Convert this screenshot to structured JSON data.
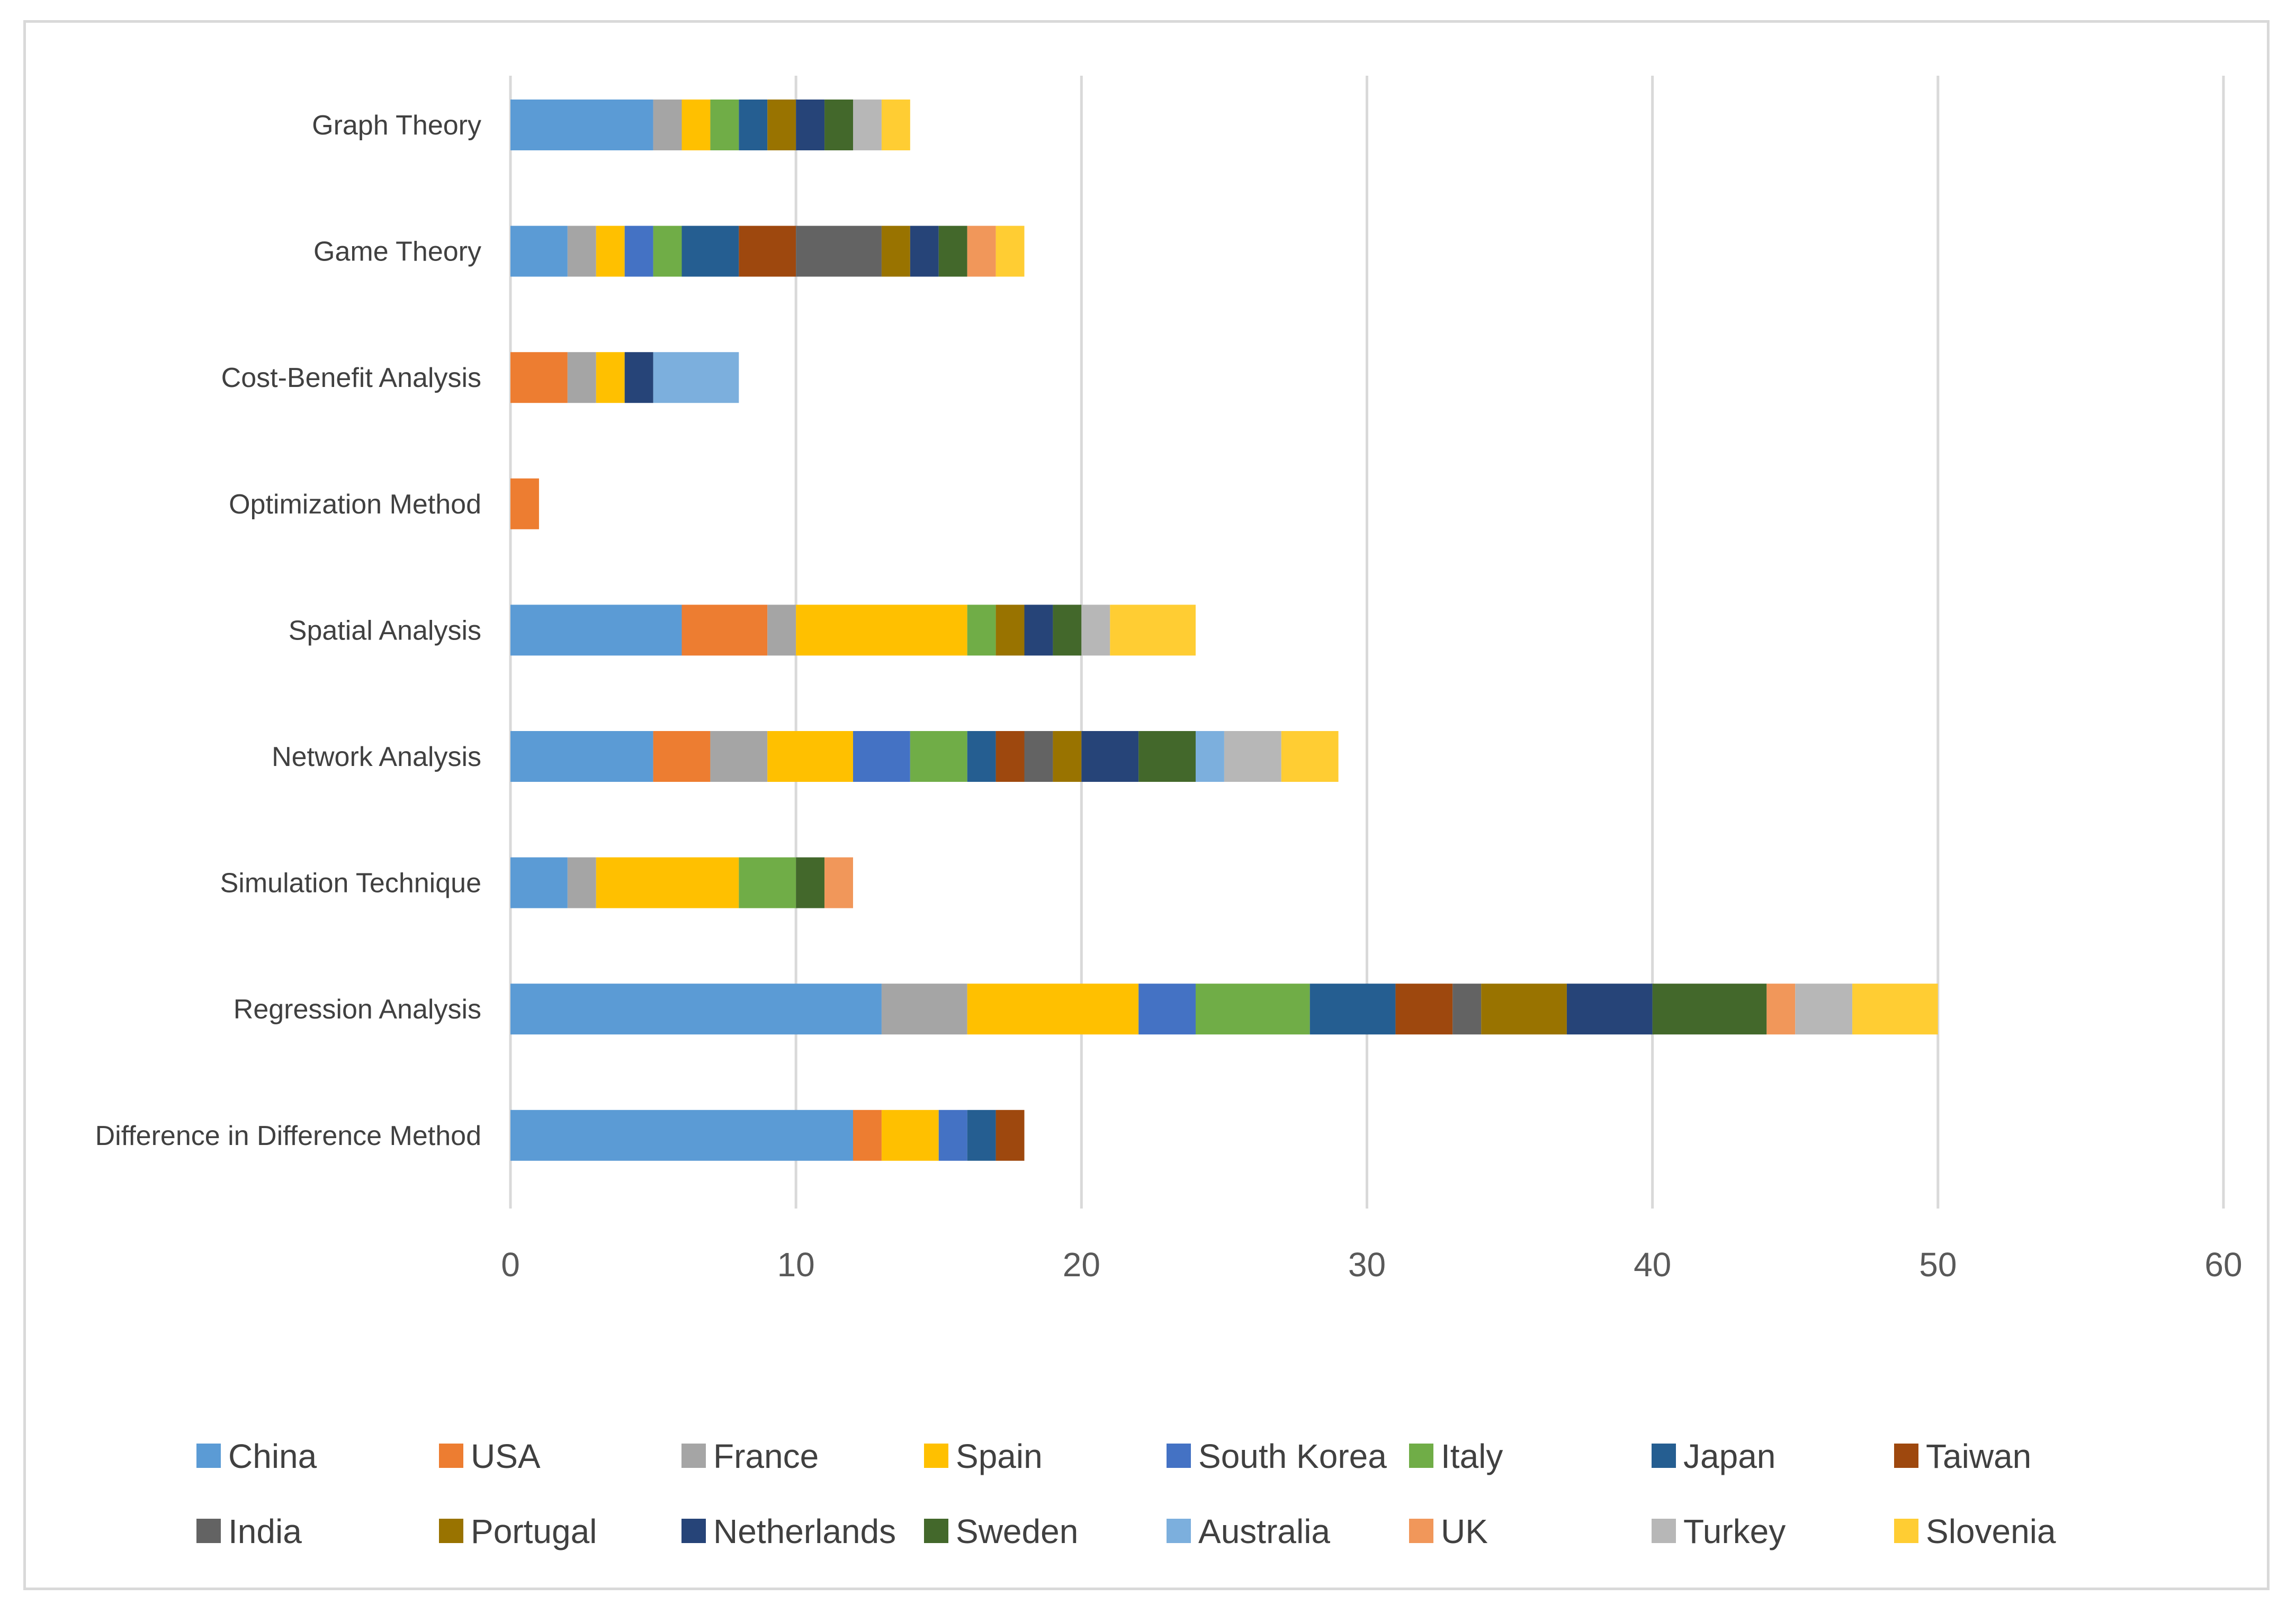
{
  "chart_data": {
    "type": "bar",
    "orientation": "horizontal",
    "stacked": true,
    "categories": [
      "Graph Theory",
      "Game Theory",
      "Cost-Benefit Analysis",
      "Optimization Method",
      "Spatial Analysis",
      "Network Analysis",
      "Simulation Technique",
      "Regression Analysis",
      "Difference in Difference Method"
    ],
    "xlim": [
      0,
      60
    ],
    "xticks": [
      0,
      10,
      20,
      30,
      40,
      50,
      60
    ],
    "grid": "vertical",
    "legend_position": "bottom",
    "series": [
      {
        "name": "China",
        "color": "#5B9BD5",
        "values": [
          5,
          2,
          0,
          0,
          6,
          5,
          2,
          13,
          12
        ]
      },
      {
        "name": "USA",
        "color": "#ED7D31",
        "values": [
          0,
          0,
          2,
          1,
          3,
          2,
          0,
          0,
          1
        ]
      },
      {
        "name": "France",
        "color": "#A5A5A5",
        "values": [
          1,
          1,
          1,
          0,
          1,
          2,
          1,
          3,
          0
        ]
      },
      {
        "name": "Spain",
        "color": "#FFC000",
        "values": [
          1,
          1,
          1,
          0,
          6,
          3,
          5,
          6,
          2
        ]
      },
      {
        "name": "South Korea",
        "color": "#4472C4",
        "values": [
          0,
          1,
          0,
          0,
          0,
          2,
          0,
          2,
          1
        ]
      },
      {
        "name": "Italy",
        "color": "#70AD47",
        "values": [
          1,
          1,
          0,
          0,
          1,
          2,
          2,
          4,
          0
        ]
      },
      {
        "name": "Japan",
        "color": "#255E91",
        "values": [
          1,
          2,
          0,
          0,
          0,
          1,
          0,
          3,
          1
        ]
      },
      {
        "name": "Taiwan",
        "color": "#9E480E",
        "values": [
          0,
          2,
          0,
          0,
          0,
          1,
          0,
          2,
          1
        ]
      },
      {
        "name": "India",
        "color": "#636363",
        "values": [
          0,
          3,
          0,
          0,
          0,
          1,
          0,
          1,
          0
        ]
      },
      {
        "name": "Portugal",
        "color": "#997300",
        "values": [
          1,
          1,
          0,
          0,
          1,
          1,
          0,
          3,
          0
        ]
      },
      {
        "name": "Netherlands",
        "color": "#264478",
        "values": [
          1,
          1,
          1,
          0,
          1,
          2,
          0,
          3,
          0
        ]
      },
      {
        "name": "Sweden",
        "color": "#43682B",
        "values": [
          1,
          1,
          0,
          0,
          1,
          2,
          1,
          4,
          0
        ]
      },
      {
        "name": "Australia",
        "color": "#7CAFDD",
        "values": [
          0,
          0,
          3,
          0,
          0,
          1,
          0,
          0,
          0
        ]
      },
      {
        "name": "UK",
        "color": "#F1975A",
        "values": [
          0,
          1,
          0,
          0,
          0,
          0,
          1,
          1,
          0
        ]
      },
      {
        "name": "Turkey",
        "color": "#B7B7B7",
        "values": [
          1,
          0,
          0,
          0,
          1,
          2,
          0,
          2,
          0
        ]
      },
      {
        "name": "Slovenia",
        "color": "#FFCD33",
        "values": [
          1,
          1,
          0,
          0,
          3,
          2,
          0,
          3,
          0
        ]
      }
    ]
  }
}
